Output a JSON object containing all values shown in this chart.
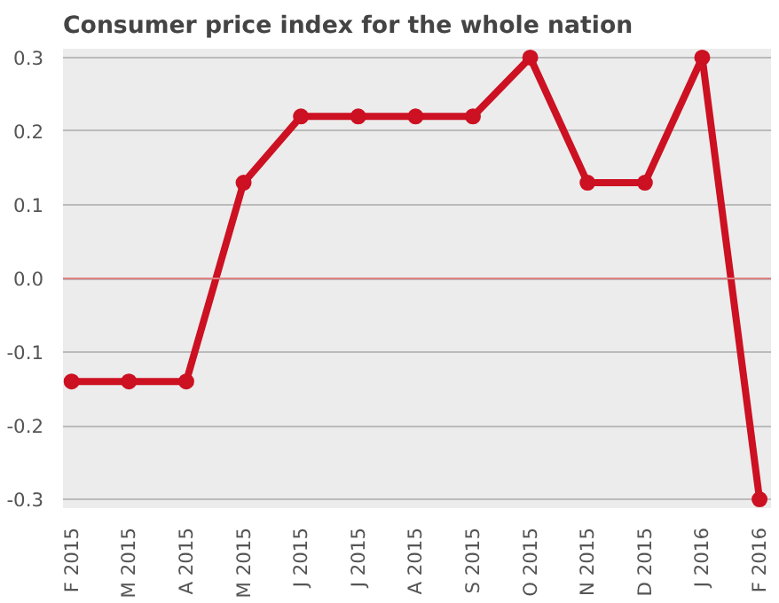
{
  "chart_data": {
    "type": "line",
    "title": "Consumer price index for the whole nation",
    "categories": [
      "F 2015",
      "M 2015",
      "A 2015",
      "M 2015",
      "J 2015",
      "J 2015",
      "A 2015",
      "S 2015",
      "O 2015",
      "N 2015",
      "D 2015",
      "J 2016",
      "F 2016"
    ],
    "series": [
      {
        "color": "#cc1122",
        "values": [
          -0.14,
          -0.14,
          -0.14,
          0.13,
          0.22,
          0.22,
          0.22,
          0.22,
          0.3,
          0.13,
          0.13,
          0.3,
          -0.3
        ]
      }
    ],
    "ylim": [
      -0.3,
      0.3
    ],
    "yticks": [
      {
        "value": 0.3,
        "label": "0.3"
      },
      {
        "value": 0.2,
        "label": "0.2"
      },
      {
        "value": 0.1,
        "label": "0.1"
      },
      {
        "value": 0,
        "label": "0.0"
      },
      {
        "value": -0.1,
        "label": "-0.1"
      },
      {
        "value": -0.2,
        "label": "-0.2"
      },
      {
        "value": -0.3,
        "label": "-0.3"
      }
    ],
    "ref_lines": [
      {
        "axis": "y",
        "value": 0,
        "color": "#e08080"
      }
    ],
    "grid": "y",
    "marker": "circle",
    "line_style": "solid"
  }
}
